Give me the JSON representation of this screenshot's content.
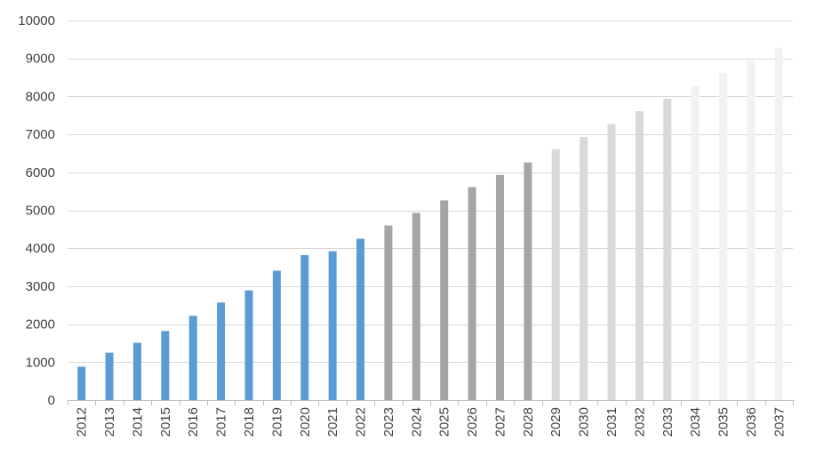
{
  "chart_data": {
    "type": "bar",
    "categories": [
      "2012",
      "2013",
      "2014",
      "2015",
      "2016",
      "2017",
      "2018",
      "2019",
      "2020",
      "2021",
      "2022",
      "2023",
      "2024",
      "2025",
      "2026",
      "2027",
      "2028",
      "2029",
      "2030",
      "2031",
      "2032",
      "2033",
      "2034",
      "2035",
      "2036",
      "2037"
    ],
    "values": [
      880,
      1250,
      1510,
      1820,
      2220,
      2570,
      2890,
      3410,
      3820,
      3920,
      4250,
      4600,
      4930,
      5260,
      5610,
      5930,
      6260,
      6610,
      6930,
      7270,
      7610,
      7940,
      8270,
      8610,
      8940,
      9280
    ],
    "bar_colors": [
      "#5b9bd5",
      "#5b9bd5",
      "#5b9bd5",
      "#5b9bd5",
      "#5b9bd5",
      "#5b9bd5",
      "#5b9bd5",
      "#5b9bd5",
      "#5b9bd5",
      "#5b9bd5",
      "#5b9bd5",
      "#a5a5a5",
      "#a5a5a5",
      "#a5a5a5",
      "#a5a5a5",
      "#a5a5a5",
      "#a5a5a5",
      "#d9d9d9",
      "#d9d9d9",
      "#d9d9d9",
      "#d9d9d9",
      "#d9d9d9",
      "#f2f2f2",
      "#f2f2f2",
      "#f2f2f2",
      "#f2f2f2"
    ],
    "title": "",
    "xlabel": "",
    "ylabel": "",
    "ylim": [
      0,
      10000
    ],
    "yticks": [
      "0",
      "1000",
      "2000",
      "3000",
      "4000",
      "5000",
      "6000",
      "7000",
      "8000",
      "9000",
      "10000"
    ],
    "grid": true,
    "gridline_color": "#d9d9d9",
    "axis_color": "#bfbfbf",
    "label_color": "#404040"
  }
}
